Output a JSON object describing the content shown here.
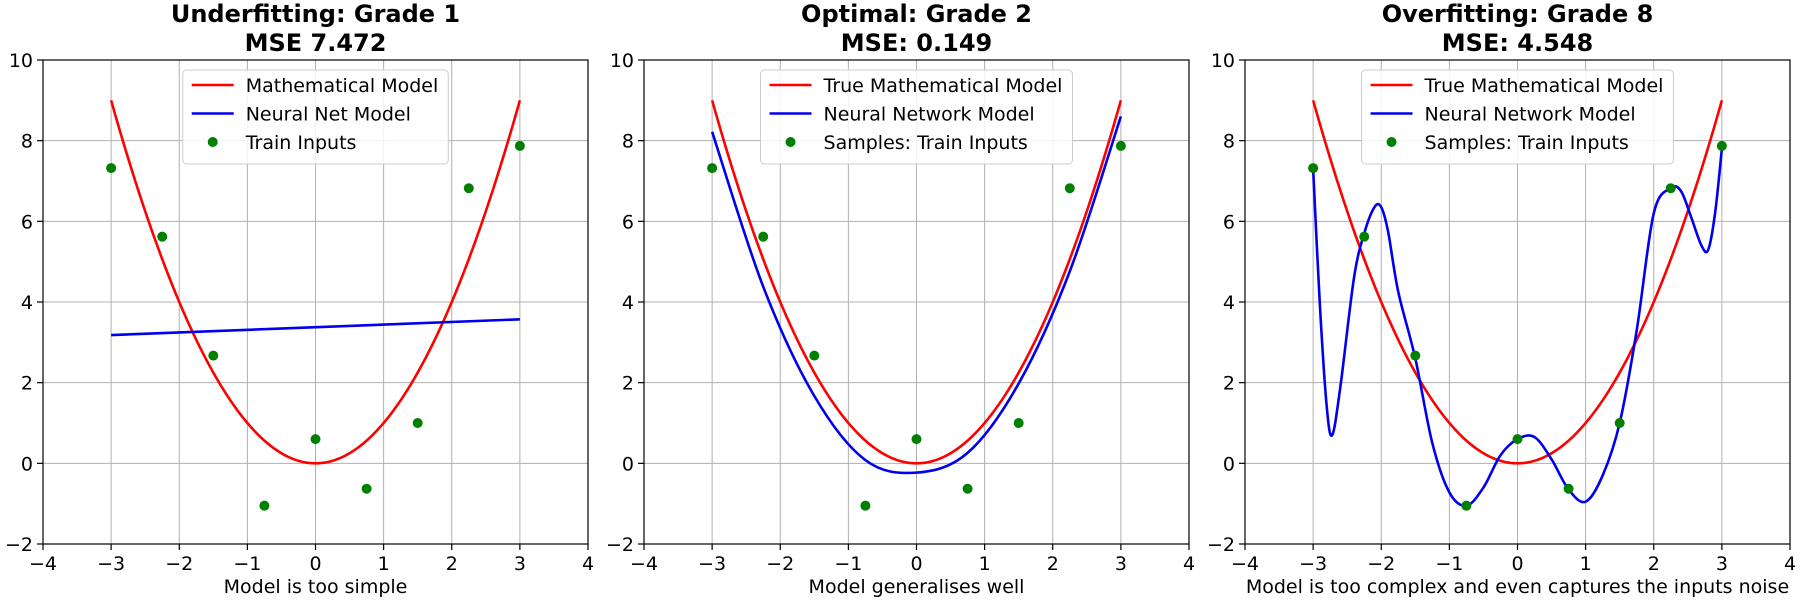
{
  "colors": {
    "true_model": "#ff0000",
    "nn_model": "#0000ee",
    "points": "#008000"
  },
  "chart_data": [
    {
      "type": "line",
      "title_line1": "Underfitting: Grade 1",
      "title_line2": "MSE 7.472",
      "xlabel": "Model is too simple",
      "ylabel": "",
      "xlim": [
        -4,
        4
      ],
      "ylim": [
        -2,
        10
      ],
      "xticks": [
        -4,
        -3,
        -2,
        -1,
        0,
        1,
        2,
        3,
        4
      ],
      "yticks": [
        -2,
        0,
        2,
        4,
        6,
        8,
        10
      ],
      "grid": true,
      "legend_position": "top-center",
      "true_model": {
        "label": "Mathematical Model",
        "formula": "x^2",
        "x_range": [
          -3,
          3
        ]
      },
      "nn_model": {
        "label": "Neural Net Model",
        "x": [
          -3,
          3
        ],
        "y": [
          3.18,
          3.57
        ]
      },
      "points": {
        "label": "Train Inputs",
        "x": [
          -3,
          -2.25,
          -1.5,
          -0.75,
          0,
          0.75,
          1.5,
          2.25,
          3
        ],
        "y": [
          7.32,
          5.62,
          2.67,
          -1.05,
          0.6,
          -0.63,
          1.0,
          6.82,
          7.87
        ]
      }
    },
    {
      "type": "line",
      "title_line1": "Optimal: Grade 2",
      "title_line2": "MSE: 0.149",
      "xlabel": "Model generalises well",
      "ylabel": "",
      "xlim": [
        -4,
        4
      ],
      "ylim": [
        -2,
        10
      ],
      "xticks": [
        -4,
        -3,
        -2,
        -1,
        0,
        1,
        2,
        3,
        4
      ],
      "yticks": [
        -2,
        0,
        2,
        4,
        6,
        8,
        10
      ],
      "grid": true,
      "legend_position": "top-center",
      "true_model": {
        "label": "True Mathematical Model",
        "formula": "x^2",
        "x_range": [
          -3,
          3
        ]
      },
      "nn_model": {
        "label": "Neural Network Model",
        "x": [
          -3,
          -2.25,
          -1.5,
          -0.75,
          0,
          0.75,
          1.5,
          2.25,
          3
        ],
        "y": [
          8.22,
          4.38,
          1.67,
          0.08,
          -0.23,
          0.26,
          1.98,
          4.76,
          8.6
        ]
      },
      "points": {
        "label": "Samples: Train Inputs",
        "x": [
          -3,
          -2.25,
          -1.5,
          -0.75,
          0,
          0.75,
          1.5,
          2.25,
          3
        ],
        "y": [
          7.32,
          5.62,
          2.67,
          -1.05,
          0.6,
          -0.63,
          1.0,
          6.82,
          7.87
        ]
      }
    },
    {
      "type": "line",
      "title_line1": "Overfitting: Grade 8",
      "title_line2": "MSE: 4.548",
      "xlabel": "Model is too complex and even captures the inputs noise",
      "ylabel": "",
      "xlim": [
        -4,
        4
      ],
      "ylim": [
        -2,
        10
      ],
      "xticks": [
        -4,
        -3,
        -2,
        -1,
        0,
        1,
        2,
        3,
        4
      ],
      "yticks": [
        -2,
        0,
        2,
        4,
        6,
        8,
        10
      ],
      "grid": true,
      "legend_position": "top-center",
      "true_model": {
        "label": "True Mathematical Model",
        "formula": "x^2",
        "x_range": [
          -3,
          3
        ]
      },
      "nn_model": {
        "label": "Neural Network Model",
        "x": [
          -3,
          -2.9,
          -2.8,
          -2.72,
          -2.6,
          -2.4,
          -2.25,
          -2.1,
          -2.0,
          -1.9,
          -1.75,
          -1.5,
          -1.25,
          -1.0,
          -0.75,
          -0.5,
          -0.25,
          0,
          0.25,
          0.5,
          0.75,
          1.0,
          1.25,
          1.5,
          1.75,
          2.0,
          2.25,
          2.4,
          2.55,
          2.7,
          2.8,
          2.9,
          3.0
        ],
        "y": [
          7.3,
          3.9,
          1.4,
          0.7,
          1.9,
          4.6,
          5.7,
          6.35,
          6.35,
          5.75,
          4.25,
          2.6,
          0.5,
          -0.72,
          -1.05,
          -0.6,
          0.2,
          0.6,
          0.65,
          0.1,
          -0.65,
          -0.95,
          -0.3,
          1.0,
          3.3,
          6.2,
          6.82,
          6.75,
          6.1,
          5.4,
          5.3,
          6.2,
          7.8
        ]
      },
      "points": {
        "label": "Samples: Train Inputs",
        "x": [
          -3,
          -2.25,
          -1.5,
          -0.75,
          0,
          0.75,
          1.5,
          2.25,
          3
        ],
        "y": [
          7.32,
          5.62,
          2.67,
          -1.05,
          0.6,
          -0.63,
          1.0,
          6.82,
          7.87
        ]
      }
    }
  ]
}
